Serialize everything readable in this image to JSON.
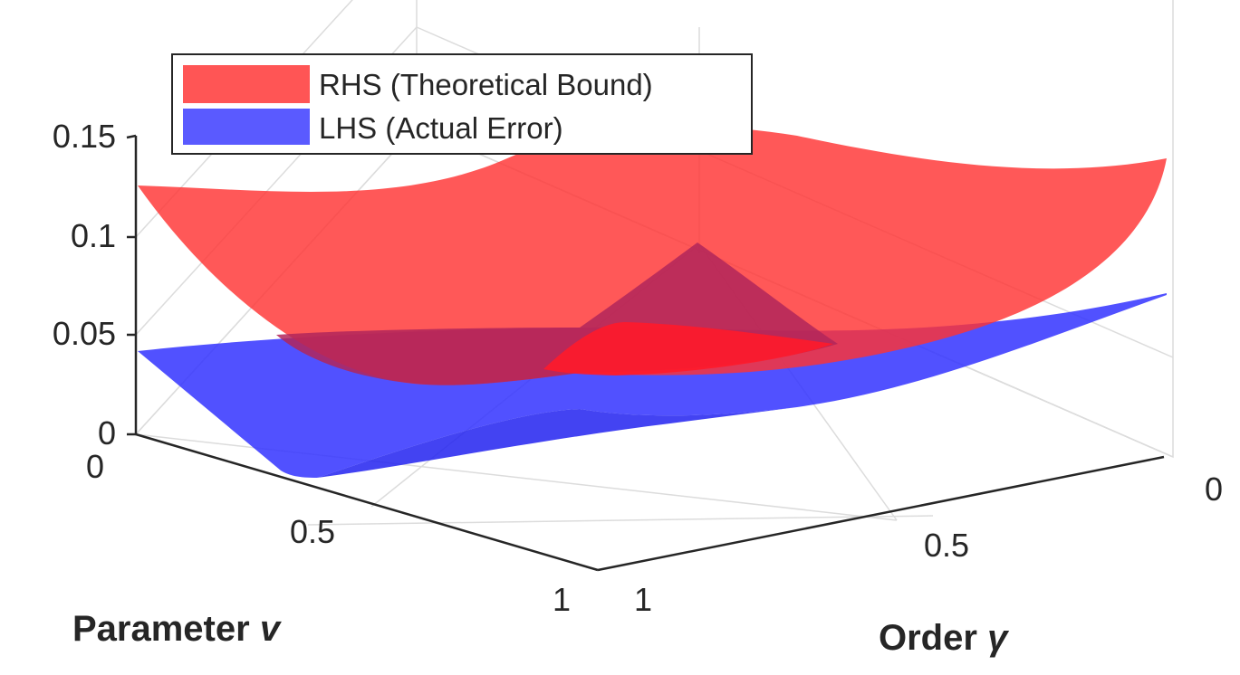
{
  "chart_data": {
    "type": "surface",
    "title": "",
    "xlabel": "Order",
    "xsymbol": "γ",
    "ylabel": "Parameter",
    "ysymbol": "v",
    "zlabel": "",
    "xlim": [
      0,
      1
    ],
    "ylim": [
      0,
      1
    ],
    "zlim": [
      0,
      0.15
    ],
    "xticks": [
      "0",
      "0.5",
      "1"
    ],
    "yticks": [
      "0",
      "0.5",
      "1"
    ],
    "zticks": [
      "0",
      "0.05",
      "0.1",
      "0.15"
    ],
    "grid": true,
    "legend_position": "top-left",
    "series": [
      {
        "name": "RHS (Theoretical Bound)",
        "color": "#ff3333",
        "opacity": 0.75,
        "points": [
          {
            "x": 0,
            "y": 0,
            "z": 0.048
          },
          {
            "x": 0,
            "y": 1,
            "z": 0.142
          },
          {
            "x": 1,
            "y": 0,
            "z": 0.123
          },
          {
            "x": 1,
            "y": 1,
            "z": 0.128
          },
          {
            "x": 0.5,
            "y": 0.5,
            "z": 0.045
          },
          {
            "x": 0.45,
            "y": 0.55,
            "z": 0.033
          }
        ]
      },
      {
        "name": "LHS (Actual Error)",
        "color": "#3333ff",
        "opacity": 0.75,
        "points": [
          {
            "x": 0,
            "y": 0,
            "z": 0.038
          },
          {
            "x": 0,
            "y": 1,
            "z": 0.068
          },
          {
            "x": 1,
            "y": 0,
            "z": 0.041
          },
          {
            "x": 1,
            "y": 1,
            "z": 0.0
          },
          {
            "x": 0.5,
            "y": 0.5,
            "z": 0.012
          }
        ]
      }
    ]
  }
}
